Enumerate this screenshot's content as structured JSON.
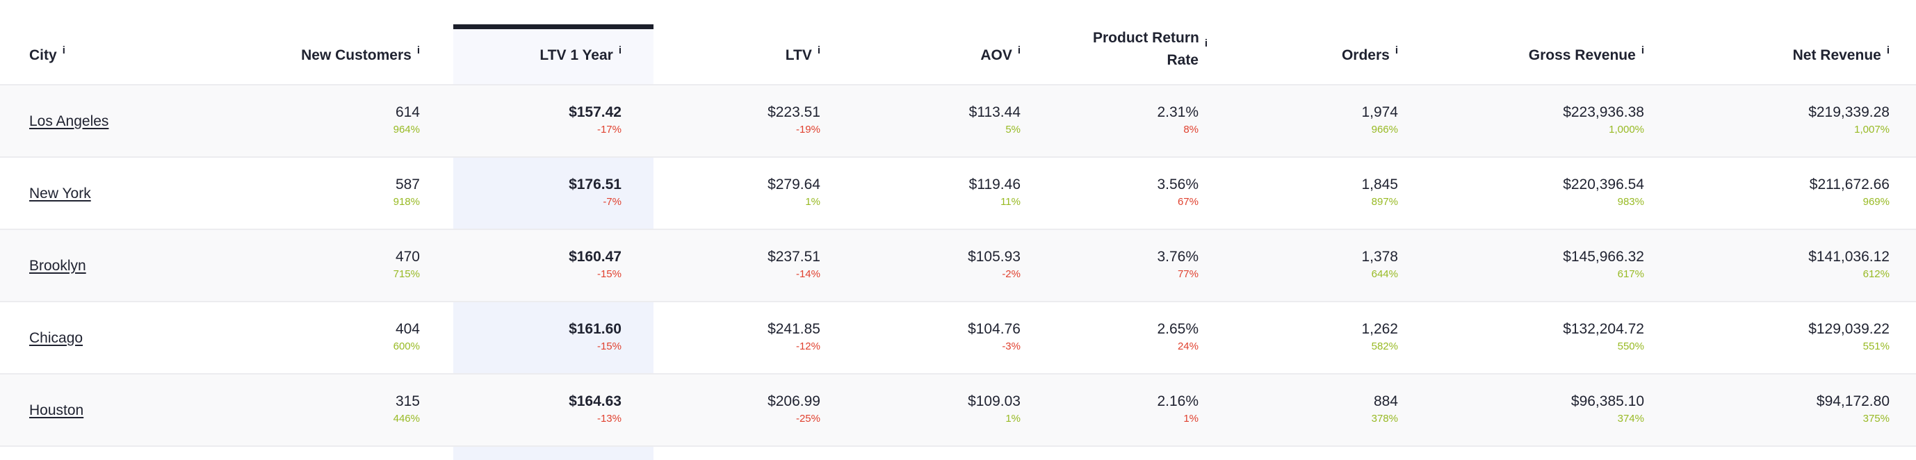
{
  "columns": [
    {
      "key": "city",
      "label": "City"
    },
    {
      "key": "new_customers",
      "label": "New Customers"
    },
    {
      "key": "ltv_1_year",
      "label": "LTV 1 Year"
    },
    {
      "key": "ltv",
      "label": "LTV"
    },
    {
      "key": "aov",
      "label": "AOV"
    },
    {
      "key": "product_return_rate",
      "label_line1": "Product Return",
      "label_line2": "Rate"
    },
    {
      "key": "orders",
      "label": "Orders"
    },
    {
      "key": "gross_revenue",
      "label": "Gross Revenue"
    },
    {
      "key": "net_revenue",
      "label": "Net Revenue"
    }
  ],
  "info_icon": "i",
  "selected_column": "ltv_1_year",
  "colors": {
    "positive": "#98ba24",
    "negative": "#e0412f",
    "selected_column_bg": "#f0f3fc",
    "selected_column_bar": "#1c1f2b"
  },
  "rows": [
    {
      "city": "Los Angeles",
      "new_customers": {
        "value": "614",
        "delta": "964%",
        "trend": "pos"
      },
      "ltv_1_year": {
        "value": "$157.42",
        "delta": "-17%",
        "trend": "neg"
      },
      "ltv": {
        "value": "$223.51",
        "delta": "-19%",
        "trend": "neg"
      },
      "aov": {
        "value": "$113.44",
        "delta": "5%",
        "trend": "pos"
      },
      "product_return_rate": {
        "value": "2.31%",
        "delta": "8%",
        "trend": "neg"
      },
      "orders": {
        "value": "1,974",
        "delta": "966%",
        "trend": "pos"
      },
      "gross_revenue": {
        "value": "$223,936.38",
        "delta": "1,000%",
        "trend": "pos"
      },
      "net_revenue": {
        "value": "$219,339.28",
        "delta": "1,007%",
        "trend": "pos"
      }
    },
    {
      "city": "New York",
      "new_customers": {
        "value": "587",
        "delta": "918%",
        "trend": "pos"
      },
      "ltv_1_year": {
        "value": "$176.51",
        "delta": "-7%",
        "trend": "neg"
      },
      "ltv": {
        "value": "$279.64",
        "delta": "1%",
        "trend": "pos"
      },
      "aov": {
        "value": "$119.46",
        "delta": "11%",
        "trend": "pos"
      },
      "product_return_rate": {
        "value": "3.56%",
        "delta": "67%",
        "trend": "neg"
      },
      "orders": {
        "value": "1,845",
        "delta": "897%",
        "trend": "pos"
      },
      "gross_revenue": {
        "value": "$220,396.54",
        "delta": "983%",
        "trend": "pos"
      },
      "net_revenue": {
        "value": "$211,672.66",
        "delta": "969%",
        "trend": "pos"
      }
    },
    {
      "city": "Brooklyn",
      "new_customers": {
        "value": "470",
        "delta": "715%",
        "trend": "pos"
      },
      "ltv_1_year": {
        "value": "$160.47",
        "delta": "-15%",
        "trend": "neg"
      },
      "ltv": {
        "value": "$237.51",
        "delta": "-14%",
        "trend": "neg"
      },
      "aov": {
        "value": "$105.93",
        "delta": "-2%",
        "trend": "neg"
      },
      "product_return_rate": {
        "value": "3.76%",
        "delta": "77%",
        "trend": "neg"
      },
      "orders": {
        "value": "1,378",
        "delta": "644%",
        "trend": "pos"
      },
      "gross_revenue": {
        "value": "$145,966.32",
        "delta": "617%",
        "trend": "pos"
      },
      "net_revenue": {
        "value": "$141,036.12",
        "delta": "612%",
        "trend": "pos"
      }
    },
    {
      "city": "Chicago",
      "new_customers": {
        "value": "404",
        "delta": "600%",
        "trend": "pos"
      },
      "ltv_1_year": {
        "value": "$161.60",
        "delta": "-15%",
        "trend": "neg"
      },
      "ltv": {
        "value": "$241.85",
        "delta": "-12%",
        "trend": "neg"
      },
      "aov": {
        "value": "$104.76",
        "delta": "-3%",
        "trend": "neg"
      },
      "product_return_rate": {
        "value": "2.65%",
        "delta": "24%",
        "trend": "neg"
      },
      "orders": {
        "value": "1,262",
        "delta": "582%",
        "trend": "pos"
      },
      "gross_revenue": {
        "value": "$132,204.72",
        "delta": "550%",
        "trend": "pos"
      },
      "net_revenue": {
        "value": "$129,039.22",
        "delta": "551%",
        "trend": "pos"
      }
    },
    {
      "city": "Houston",
      "new_customers": {
        "value": "315",
        "delta": "446%",
        "trend": "pos"
      },
      "ltv_1_year": {
        "value": "$164.63",
        "delta": "-13%",
        "trend": "neg"
      },
      "ltv": {
        "value": "$206.99",
        "delta": "-25%",
        "trend": "neg"
      },
      "aov": {
        "value": "$109.03",
        "delta": "1%",
        "trend": "pos"
      },
      "product_return_rate": {
        "value": "2.16%",
        "delta": "1%",
        "trend": "neg"
      },
      "orders": {
        "value": "884",
        "delta": "378%",
        "trend": "pos"
      },
      "gross_revenue": {
        "value": "$96,385.10",
        "delta": "374%",
        "trend": "pos"
      },
      "net_revenue": {
        "value": "$94,172.80",
        "delta": "375%",
        "trend": "pos"
      }
    }
  ]
}
